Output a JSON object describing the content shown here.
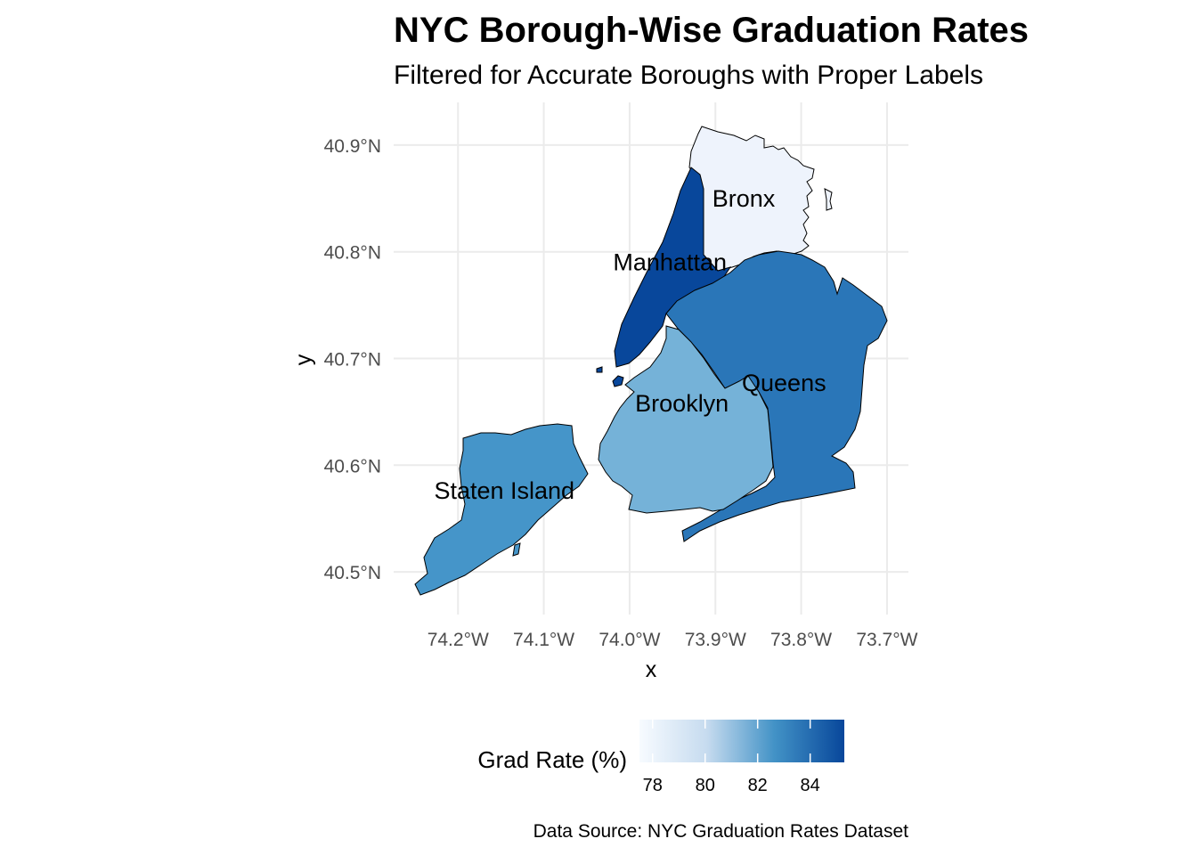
{
  "chart_data": {
    "type": "choropleth",
    "title": "NYC Borough-Wise Graduation Rates",
    "subtitle": "Filtered for Accurate Boroughs with Proper Labels",
    "xlabel": "x",
    "ylabel": "y",
    "x_ticks": [
      {
        "value": -74.2,
        "label": "74.2°W"
      },
      {
        "value": -74.1,
        "label": "74.1°W"
      },
      {
        "value": -74.0,
        "label": "74.0°W"
      },
      {
        "value": -73.9,
        "label": "73.9°W"
      },
      {
        "value": -73.8,
        "label": "73.8°W"
      },
      {
        "value": -73.7,
        "label": "73.7°W"
      }
    ],
    "y_ticks": [
      {
        "value": 40.9,
        "label": "40.9°N"
      },
      {
        "value": 40.8,
        "label": "40.8°N"
      },
      {
        "value": 40.7,
        "label": "40.7°N"
      },
      {
        "value": 40.6,
        "label": "40.6°N"
      },
      {
        "value": 40.5,
        "label": "40.5°N"
      }
    ],
    "xlim": [
      -74.275,
      -73.675
    ],
    "ylim": [
      40.46,
      40.94
    ],
    "grid": true,
    "regions": [
      {
        "name": "Bronx",
        "value": 77.5,
        "color": "#eef3fc",
        "label_lon": -73.867,
        "label_lat": 40.85
      },
      {
        "name": "Manhattan",
        "value": 85.2,
        "color": "#08479b",
        "label_lon": -73.953,
        "label_lat": 40.79
      },
      {
        "name": "Queens",
        "value": 83.4,
        "color": "#2a76b8",
        "label_lon": -73.82,
        "label_lat": 40.677
      },
      {
        "name": "Brooklyn",
        "value": 81.1,
        "color": "#75b2d8",
        "label_lon": -73.939,
        "label_lat": 40.658
      },
      {
        "name": "Staten Island",
        "value": 82.7,
        "color": "#4595c9",
        "label_lon": -74.146,
        "label_lat": 40.576
      }
    ],
    "legend": {
      "title": "Grad Rate (%)",
      "position": "bottom",
      "range": [
        77.5,
        85.3
      ],
      "breaks": [
        78,
        80,
        82,
        84
      ],
      "low_color": "#f7fbff",
      "high_color": "#08479b"
    },
    "caption": "Data Source: NYC Graduation Rates Dataset"
  }
}
